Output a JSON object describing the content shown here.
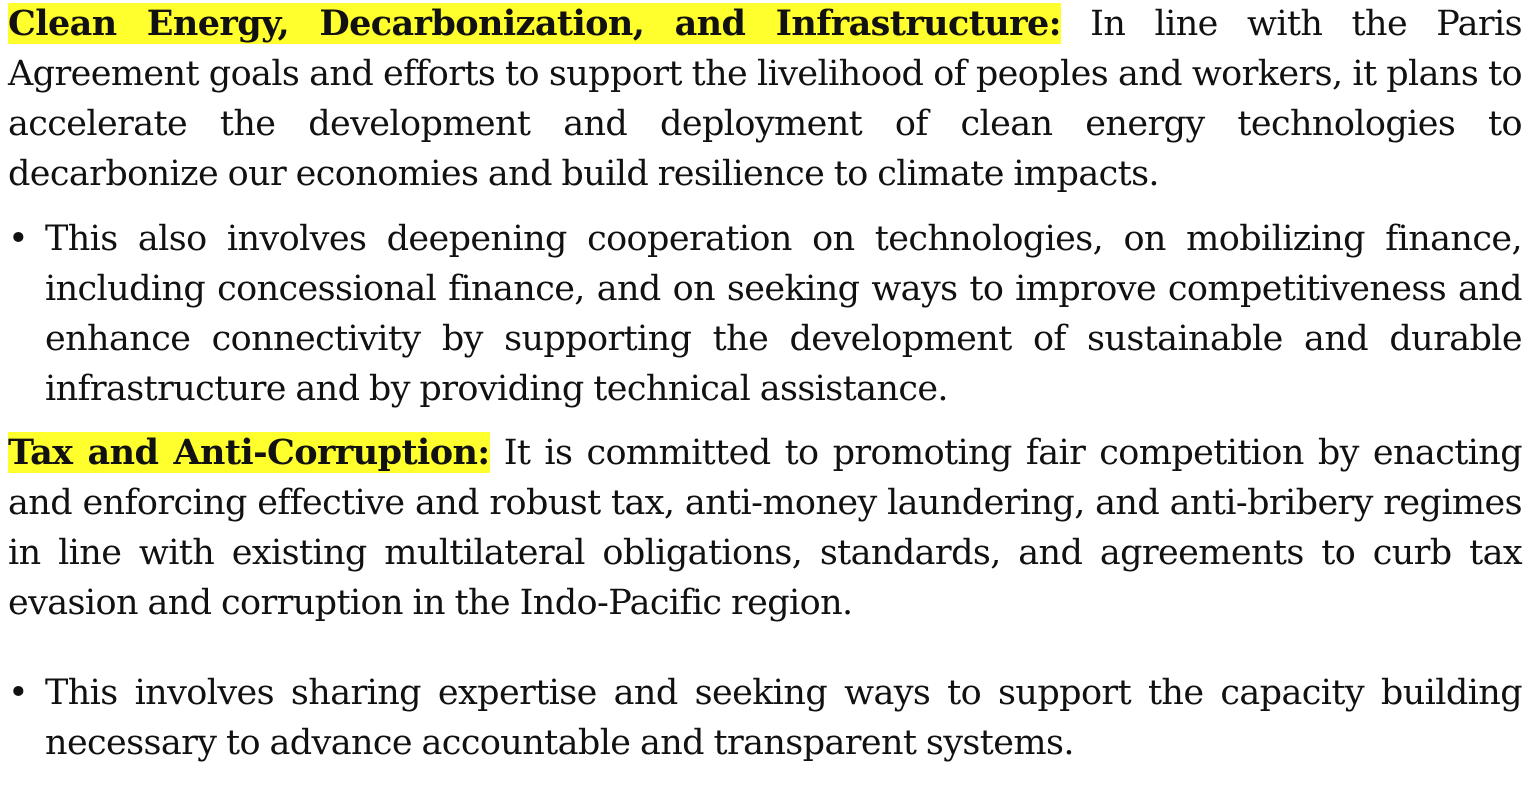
{
  "sections": [
    {
      "heading": "Clean Energy, Decarbonization, and Infrastructure:",
      "text": " In line with the Paris Agreement goals and efforts to support the livelihood of peoples and workers, it plans to accelerate the development and deployment of clean energy technologies to decarbonize our economies and build resilience to climate impacts.",
      "bullet": "This also involves deepening cooperation on technologies, on mobilizing finance, including concessional finance, and on seeking ways to improve competitiveness and enhance connectivity by supporting the development of sustainable and durable infrastructure and by providing technical assistance."
    },
    {
      "heading": "Tax and Anti-Corruption:",
      "text": " It is committed to promoting fair competition by enacting and enforcing effective and robust tax, anti-money laundering, and anti-bribery regimes in line with existing multilateral obligations, standards, and agreements to curb tax evasion and corruption in the Indo-Pacific region.",
      "bullet": "This involves sharing expertise and seeking ways to support the capacity building necessary to advance accountable and transparent systems."
    }
  ],
  "bullet_symbol": "•",
  "colors": {
    "highlight": "#ffff2d",
    "text": "#111111",
    "background": "#ffffff"
  }
}
